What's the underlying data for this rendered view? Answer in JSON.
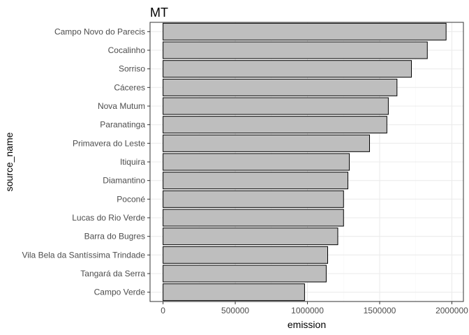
{
  "chart_data": {
    "type": "bar",
    "orientation": "horizontal",
    "title": "MT",
    "xlabel": "emission",
    "ylabel": "source_name",
    "categories": [
      "Campo Novo do Parecis",
      "Cocalinho",
      "Sorriso",
      "Cáceres",
      "Nova Mutum",
      "Paranatinga",
      "Primavera do Leste",
      "Itiquira",
      "Diamantino",
      "Poconé",
      "Lucas do Rio Verde",
      "Barra do Bugres",
      "Vila Bela da Santíssima Trindade",
      "Tangará da Serra",
      "Campo Verde"
    ],
    "values": [
      1960000,
      1830000,
      1720000,
      1620000,
      1560000,
      1550000,
      1430000,
      1290000,
      1280000,
      1250000,
      1250000,
      1210000,
      1140000,
      1130000,
      980000
    ],
    "xlim": [
      -90000,
      2080000
    ],
    "xticks": [
      0,
      500000,
      1000000,
      1500000,
      2000000
    ],
    "xtick_labels": [
      "0",
      "500000",
      "1000000",
      "1500000",
      "2000000"
    ],
    "grid": true,
    "legend": "none",
    "colors": {
      "bar_fill": "#bebebe",
      "bar_stroke": "#000000",
      "panel_border": "#333333",
      "grid_major": "#ebebeb",
      "grid_minor": "#f5f5f5"
    }
  }
}
